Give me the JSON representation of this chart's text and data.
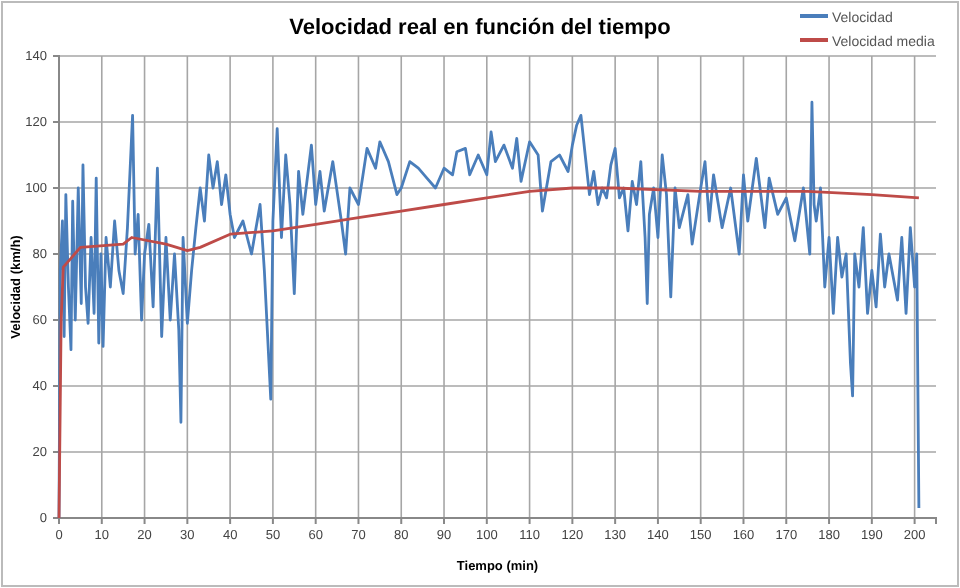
{
  "chart_data": {
    "type": "line",
    "title": "Velocidad real en función del tiempo",
    "xlabel": "Tiempo (min)",
    "ylabel": "Velocidad (km/h)",
    "xlim": [
      0,
      205
    ],
    "xticks": [
      0,
      10,
      20,
      30,
      40,
      50,
      60,
      70,
      80,
      90,
      100,
      110,
      120,
      130,
      140,
      150,
      160,
      170,
      180,
      190,
      200
    ],
    "ylim": [
      0,
      140
    ],
    "yticks": [
      0,
      20,
      40,
      60,
      80,
      100,
      120,
      140
    ],
    "grid": true,
    "legend": "top right",
    "marker": "none",
    "line_style": "solid",
    "series": [
      {
        "name": "Velocidad",
        "color": "#4a7ebb",
        "x": [
          0,
          0.3,
          0.8,
          1.2,
          1.6,
          2.2,
          2.8,
          3.2,
          3.8,
          4.5,
          5.2,
          5.6,
          6.2,
          6.8,
          7.5,
          8.2,
          8.7,
          9.3,
          9.8,
          10.3,
          11,
          12,
          13,
          14,
          15,
          16,
          17.2,
          17.8,
          18.5,
          19.3,
          20,
          21,
          22,
          23,
          24,
          25,
          26,
          27,
          28,
          28.5,
          29,
          30,
          31,
          32,
          33,
          34,
          35,
          36,
          37,
          38,
          39,
          40,
          41,
          43,
          45,
          47,
          48,
          49.5,
          50,
          51,
          52,
          53,
          54,
          55,
          56,
          57,
          59,
          60,
          61,
          62,
          64,
          66,
          67,
          68,
          70,
          72,
          74,
          75,
          77,
          79,
          80,
          82,
          84,
          86,
          88,
          90,
          92,
          93,
          95,
          96,
          98,
          100,
          101,
          102,
          104,
          106,
          107,
          108,
          110,
          112,
          113,
          115,
          117,
          119,
          120,
          121,
          122,
          123,
          124,
          125,
          126,
          127,
          128,
          129,
          130,
          131,
          132,
          133,
          134,
          135,
          136,
          137,
          137.5,
          138,
          139,
          140,
          141,
          142,
          143,
          144,
          145,
          147,
          148,
          150,
          151,
          152,
          153,
          155,
          157,
          159,
          160,
          161,
          163,
          165,
          166,
          168,
          170,
          172,
          174,
          175.5,
          176,
          176.5,
          177,
          178,
          179,
          180,
          181,
          182,
          183,
          184,
          185,
          185.5,
          186,
          187,
          188,
          189,
          190,
          191,
          192,
          193,
          194,
          196,
          197,
          198,
          199,
          200,
          200.5,
          201
        ],
        "values": [
          0,
          75,
          90,
          55,
          98,
          70,
          51,
          96,
          60,
          100,
          65,
          107,
          70,
          59,
          85,
          62,
          103,
          53,
          80,
          52,
          85,
          70,
          90,
          75,
          68,
          88,
          122,
          80,
          92,
          60,
          80,
          89,
          64,
          106,
          55,
          85,
          60,
          80,
          57,
          29,
          85,
          59,
          75,
          88,
          100,
          90,
          110,
          100,
          108,
          95,
          104,
          92,
          85,
          90,
          80,
          95,
          75,
          36,
          90,
          118,
          85,
          110,
          95,
          68,
          105,
          92,
          113,
          95,
          105,
          93,
          108,
          90,
          80,
          100,
          95,
          112,
          106,
          114,
          108,
          98,
          100,
          108,
          106,
          103,
          100,
          106,
          104,
          111,
          112,
          104,
          110,
          104,
          117,
          108,
          113,
          106,
          115,
          102,
          114,
          110,
          93,
          108,
          110,
          105,
          113,
          119,
          122,
          110,
          98,
          105,
          95,
          100,
          97,
          107,
          112,
          97,
          100,
          87,
          102,
          95,
          108,
          85,
          65,
          92,
          100,
          85,
          110,
          98,
          67,
          100,
          88,
          98,
          83,
          100,
          108,
          90,
          104,
          88,
          100,
          80,
          104,
          90,
          109,
          88,
          103,
          92,
          97,
          84,
          100,
          80,
          126,
          95,
          90,
          100,
          70,
          85,
          62,
          85,
          73,
          80,
          47,
          37,
          80,
          70,
          88,
          62,
          75,
          64,
          86,
          70,
          80,
          66,
          85,
          62,
          88,
          70,
          80,
          3
        ]
      },
      {
        "name": "Velocidad media",
        "color": "#be4b48",
        "x": [
          0,
          0.5,
          1,
          3,
          5,
          15,
          17,
          25,
          30,
          33,
          40,
          50,
          60,
          70,
          80,
          90,
          100,
          110,
          120,
          130,
          150,
          175,
          190,
          201
        ],
        "values": [
          0,
          60,
          76,
          79,
          82,
          83,
          85,
          83,
          81,
          82,
          86,
          87,
          89,
          91,
          93,
          95,
          97,
          99,
          100,
          100,
          99,
          99,
          98,
          97
        ]
      }
    ]
  }
}
